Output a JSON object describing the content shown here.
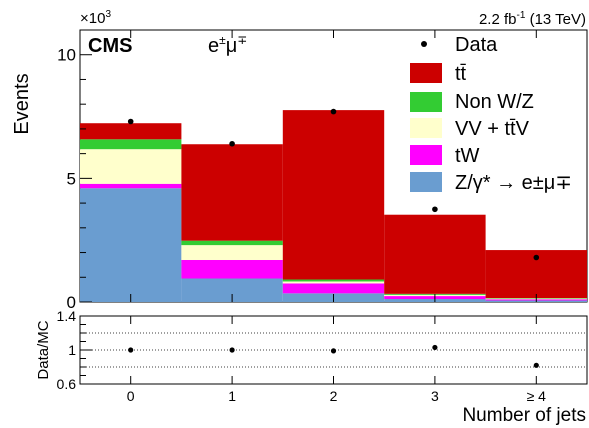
{
  "header": {
    "lumi": "2.2 fb",
    "lumi_sup": "-1",
    "lumi_rest": " (13 TeV)",
    "exponent_base": "×10",
    "exponent_sup": "3",
    "cms": "CMS",
    "channel": "e",
    "channel_sup1": "±",
    "channel_mid": "μ",
    "channel_sup2": "∓"
  },
  "chart_data": [
    {
      "type": "bar",
      "stacked": true,
      "xlabel": "Number of jets",
      "ylabel": "Events",
      "ylim": [
        0,
        11000
      ],
      "y_ticks": [
        0,
        5,
        10
      ],
      "y_tick_labels": [
        "0",
        "5",
        "10"
      ],
      "y_exponent": "×10^3",
      "categories": [
        "0",
        "1",
        "2",
        "3",
        "≥ 4"
      ],
      "series": [
        {
          "name": "Z/γ* → e±μ∓",
          "color": "#6a9dd0",
          "values": [
            4600,
            950,
            350,
            120,
            60
          ]
        },
        {
          "name": "tW",
          "color": "#ff00ff",
          "values": [
            180,
            750,
            400,
            120,
            50
          ]
        },
        {
          "name": "VV + tt̄V",
          "color": "#ffffcc",
          "values": [
            1400,
            600,
            80,
            50,
            30
          ]
        },
        {
          "name": "Non W/Z",
          "color": "#33cc33",
          "values": [
            400,
            180,
            80,
            40,
            20
          ]
        },
        {
          "name": "tt̄",
          "color": "#cc0000",
          "values": [
            650,
            3900,
            6850,
            3200,
            1940
          ]
        }
      ],
      "data": {
        "name": "Data",
        "values": [
          7300,
          6400,
          7700,
          3750,
          1800
        ]
      },
      "legend_position": "top-right",
      "grid": false
    },
    {
      "type": "scatter",
      "ylabel": "Data/MC",
      "xlabel": "Number of jets",
      "categories": [
        "0",
        "1",
        "2",
        "3",
        "≥ 4"
      ],
      "ylim": [
        0.6,
        1.4
      ],
      "y_ticks": [
        0.6,
        1,
        1.4
      ],
      "y_tick_labels": [
        "0.6",
        "1",
        "1.4"
      ],
      "reference_lines": [
        0.8,
        1.0,
        1.2
      ],
      "values": [
        1.0,
        1.0,
        0.99,
        1.03,
        0.82
      ]
    }
  ]
}
